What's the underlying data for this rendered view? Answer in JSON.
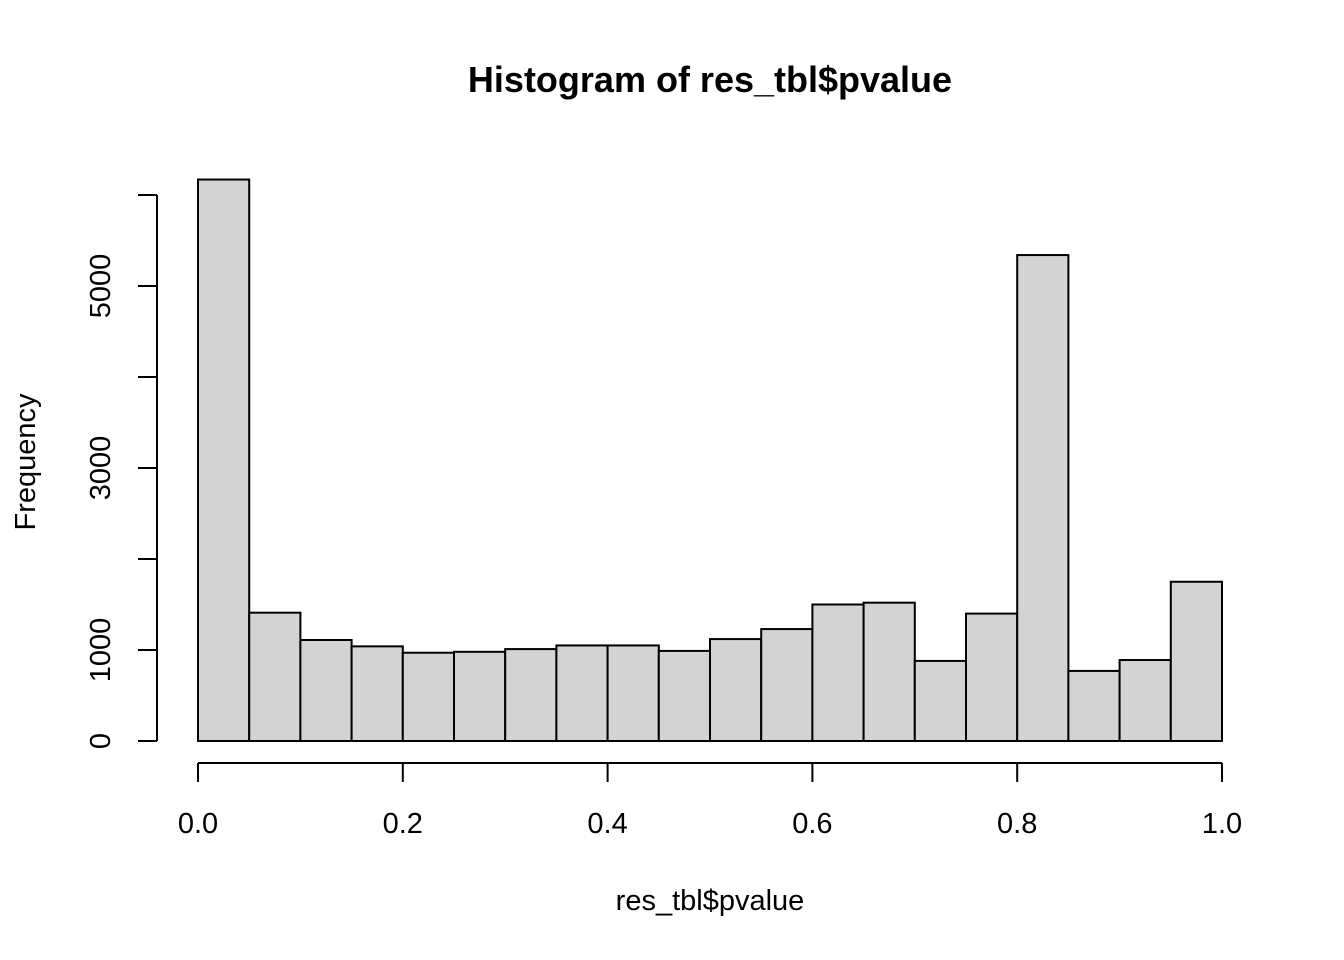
{
  "chart_data": {
    "type": "bar",
    "title": "Histogram of res_tbl$pvalue",
    "xlabel": "res_tbl$pvalue",
    "ylabel": "Frequency",
    "bin_edges": [
      0.0,
      0.05,
      0.1,
      0.15,
      0.2,
      0.25,
      0.3,
      0.35,
      0.4,
      0.45,
      0.5,
      0.55,
      0.6,
      0.65,
      0.7,
      0.75,
      0.8,
      0.85,
      0.9,
      0.95,
      1.0
    ],
    "values": [
      6170,
      1410,
      1110,
      1040,
      970,
      980,
      1010,
      1050,
      1050,
      990,
      1120,
      1230,
      1500,
      1520,
      880,
      1400,
      5340,
      770,
      890,
      1750
    ],
    "xlim": [
      0.0,
      1.0
    ],
    "ylim": [
      0,
      6000
    ],
    "x_ticks": [
      0.0,
      0.2,
      0.4,
      0.6,
      0.8,
      1.0
    ],
    "x_tick_labels": [
      "0.0",
      "0.2",
      "0.4",
      "0.6",
      "0.8",
      "1.0"
    ],
    "y_ticks": [
      0,
      1000,
      2000,
      3000,
      4000,
      5000,
      6000
    ],
    "y_tick_labels": [
      "0",
      "1000",
      "",
      "3000",
      "",
      "5000",
      ""
    ],
    "fill_color": "#d3d3d3",
    "stroke_color": "#000000",
    "grid": false
  }
}
